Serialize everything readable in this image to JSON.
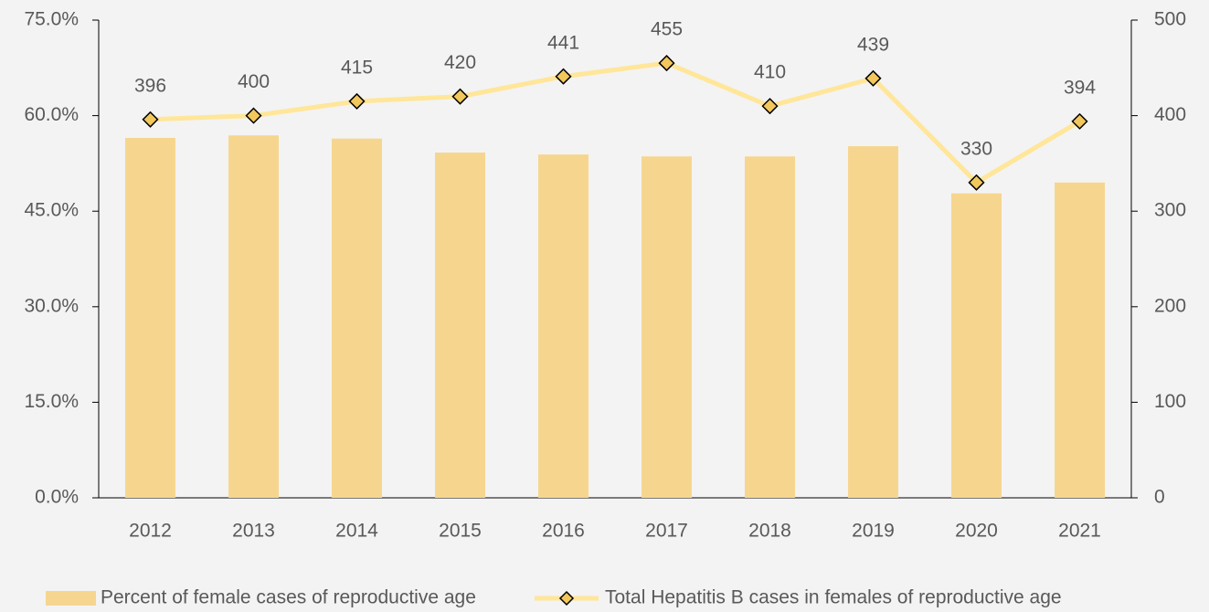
{
  "chart_data": {
    "type": "bar-line",
    "categories": [
      "2012",
      "2013",
      "2014",
      "2015",
      "2016",
      "2017",
      "2018",
      "2019",
      "2020",
      "2021"
    ],
    "series": [
      {
        "name": "Percent of female cases of reproductive age",
        "type": "bar",
        "axis": "y",
        "color": "#f6d68f",
        "values": [
          56.5,
          56.9,
          56.4,
          54.2,
          53.9,
          53.6,
          53.6,
          55.2,
          47.8,
          49.5
        ]
      },
      {
        "name": "Total Hepatitis B cases in females of reproductive age",
        "type": "line",
        "axis": "y2",
        "color": "#ffe699",
        "marker_color": "#f2c75c",
        "values": [
          396,
          400,
          415,
          420,
          441,
          455,
          410,
          439,
          330,
          394
        ]
      }
    ],
    "ylim": [
      0,
      75
    ],
    "yticks": [
      {
        "value": 0,
        "label": "0.0%"
      },
      {
        "value": 15,
        "label": "15.0%"
      },
      {
        "value": 30,
        "label": "30.0%"
      },
      {
        "value": 45,
        "label": "45.0%"
      },
      {
        "value": 60,
        "label": "60.0%"
      },
      {
        "value": 75,
        "label": "75.0%"
      }
    ],
    "y2lim": [
      0,
      500
    ],
    "y2ticks": [
      0,
      100,
      200,
      300,
      400,
      500
    ],
    "legend": "bottom"
  }
}
